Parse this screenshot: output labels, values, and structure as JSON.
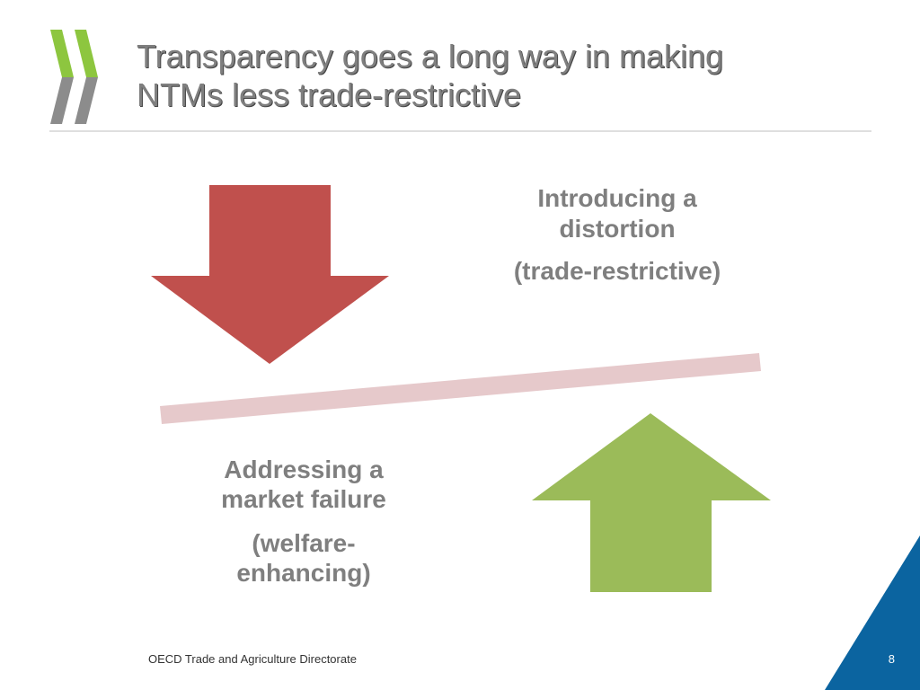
{
  "header": {
    "title_lines": [
      "Transparency goes a long way in making",
      "NTMs less trade-restrictive"
    ]
  },
  "top_label": {
    "heading_lines": [
      "Introducing a",
      "distortion"
    ],
    "note": "(trade-restrictive)"
  },
  "bottom_label": {
    "heading_lines": [
      "Addressing a",
      "market failure"
    ],
    "note_lines": [
      "(welfare-",
      "enhancing)"
    ]
  },
  "footer": {
    "organization": "OECD Trade and Agriculture Directorate",
    "page_number": "8"
  }
}
